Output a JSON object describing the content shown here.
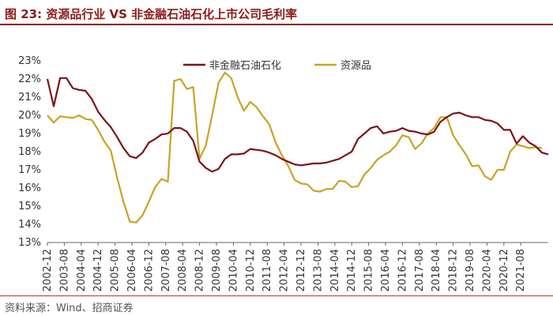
{
  "figure": {
    "title": "图 23:  资源品行业 VS  非金融石油石化上市公司毛利率",
    "source": "资料来源：Wind、招商证券"
  },
  "chart_data": {
    "type": "line",
    "title": "资源品行业 VS 非金融石油石化上市公司毛利率",
    "xlabel": "",
    "ylabel": "",
    "ylim": [
      13,
      23
    ],
    "y_ticks": [
      "13%",
      "14%",
      "15%",
      "16%",
      "17%",
      "18%",
      "19%",
      "20%",
      "21%",
      "22%",
      "23%"
    ],
    "x_tick_labels": [
      "2002-12",
      "2003-08",
      "2004-04",
      "2004-12",
      "2005-08",
      "2006-04",
      "2006-12",
      "2007-08",
      "2008-04",
      "2008-12",
      "2009-08",
      "2010-04",
      "2010-12",
      "2011-08",
      "2012-04",
      "2012-12",
      "2013-08",
      "2014-04",
      "2014-12",
      "2015-08",
      "2016-04",
      "2016-12",
      "2017-08",
      "2018-04",
      "2018-12",
      "2019-08",
      "2020-04",
      "2020-12",
      "2021-08"
    ],
    "x_start": "2002-12",
    "x_step": "quarterly",
    "legend_position": "top",
    "series": [
      {
        "name": "非金融石油石化",
        "color": "#7B1416",
        "values": [
          22.0,
          20.5,
          22.05,
          22.05,
          21.5,
          21.4,
          21.35,
          20.9,
          20.2,
          19.75,
          19.35,
          18.8,
          18.2,
          17.75,
          17.65,
          17.95,
          18.5,
          18.7,
          18.95,
          19.0,
          19.3,
          19.3,
          19.1,
          18.6,
          17.45,
          17.1,
          16.9,
          17.05,
          17.6,
          17.85,
          17.85,
          17.9,
          18.15,
          18.1,
          18.05,
          17.95,
          17.8,
          17.6,
          17.45,
          17.3,
          17.25,
          17.3,
          17.35,
          17.35,
          17.4,
          17.5,
          17.6,
          17.8,
          18.0,
          18.7,
          19.0,
          19.3,
          19.4,
          19.0,
          19.1,
          19.15,
          19.3,
          19.15,
          19.1,
          19.0,
          18.95,
          19.1,
          19.65,
          19.9,
          20.1,
          20.15,
          20.0,
          19.9,
          19.9,
          19.75,
          19.7,
          19.55,
          19.2,
          19.2,
          18.45,
          18.85,
          18.5,
          18.3,
          17.95,
          17.85
        ]
      },
      {
        "name": "资源品",
        "color": "#C9A227",
        "values": [
          20.0,
          19.6,
          19.95,
          19.9,
          19.85,
          20.0,
          19.8,
          19.75,
          19.2,
          18.55,
          18.05,
          16.55,
          15.25,
          14.15,
          14.1,
          14.5,
          15.25,
          16.05,
          16.5,
          16.35,
          21.9,
          22.0,
          21.45,
          21.55,
          17.6,
          18.35,
          20.05,
          21.8,
          22.35,
          22.05,
          21.0,
          20.25,
          20.75,
          20.45,
          19.95,
          19.5,
          18.5,
          17.8,
          17.2,
          16.45,
          16.25,
          16.2,
          15.85,
          15.8,
          15.95,
          15.95,
          16.4,
          16.35,
          16.05,
          16.1,
          16.75,
          17.1,
          17.55,
          17.8,
          18.0,
          18.35,
          18.9,
          18.8,
          18.15,
          18.45,
          19.0,
          19.3,
          19.9,
          19.9,
          18.9,
          18.35,
          17.85,
          17.2,
          17.25,
          16.65,
          16.45,
          17.0,
          17.0,
          18.0,
          18.4,
          18.3,
          18.2,
          18.25,
          18.2
        ]
      }
    ]
  }
}
